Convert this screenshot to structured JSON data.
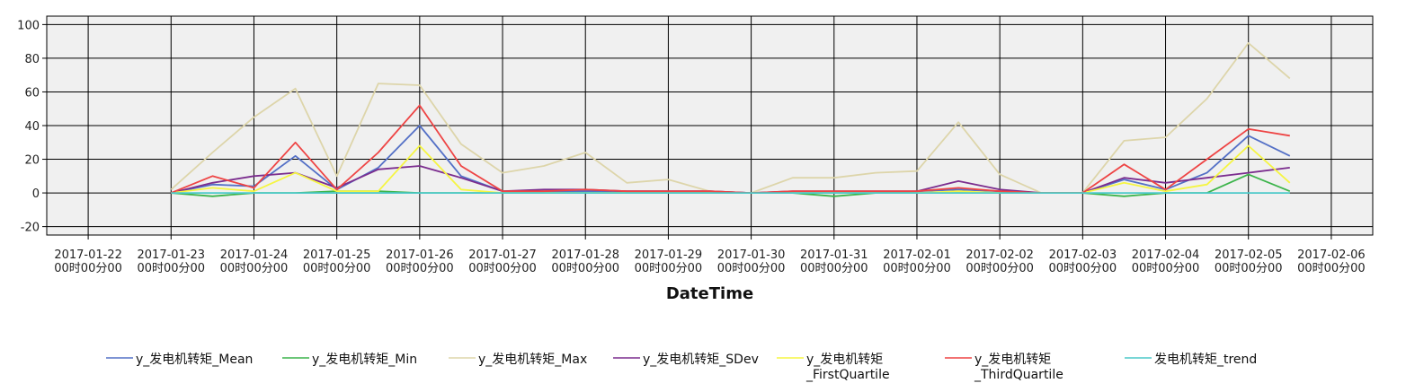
{
  "chart_data": {
    "type": "line",
    "title": "",
    "xlabel": "DateTime",
    "ylabel": "",
    "ylim": [
      -25,
      105
    ],
    "yticks": [
      -20,
      0,
      20,
      40,
      60,
      80,
      100
    ],
    "xlim": [
      "2017-01-21 12:00",
      "2017-02-06 12:00"
    ],
    "grid": true,
    "legend": "bottom",
    "plot_background": "#f0f0f0",
    "x_ticks": [
      {
        "line1": "2017-01-22",
        "line2": "00时00分00",
        "x": "2017-01-22 00:00"
      },
      {
        "line1": "2017-01-23",
        "line2": "00时00分00",
        "x": "2017-01-23 00:00"
      },
      {
        "line1": "2017-01-24",
        "line2": "00时00分00",
        "x": "2017-01-24 00:00"
      },
      {
        "line1": "2017-01-25",
        "line2": "00时00分00",
        "x": "2017-01-25 00:00"
      },
      {
        "line1": "2017-01-26",
        "line2": "00时00分00",
        "x": "2017-01-26 00:00"
      },
      {
        "line1": "2017-01-27",
        "line2": "00时00分00",
        "x": "2017-01-27 00:00"
      },
      {
        "line1": "2017-01-28",
        "line2": "00时00分00",
        "x": "2017-01-28 00:00"
      },
      {
        "line1": "2017-01-29",
        "line2": "00时00分00",
        "x": "2017-01-29 00:00"
      },
      {
        "line1": "2017-01-30",
        "line2": "00时00分00",
        "x": "2017-01-30 00:00"
      },
      {
        "line1": "2017-01-31",
        "line2": "00时00分00",
        "x": "2017-01-31 00:00"
      },
      {
        "line1": "2017-02-01",
        "line2": "00时00分00",
        "x": "2017-02-01 00:00"
      },
      {
        "line1": "2017-02-02",
        "line2": "00时00分00",
        "x": "2017-02-02 00:00"
      },
      {
        "line1": "2017-02-03",
        "line2": "00时00分00",
        "x": "2017-02-03 00:00"
      },
      {
        "line1": "2017-02-04",
        "line2": "00时00分00",
        "x": "2017-02-04 00:00"
      },
      {
        "line1": "2017-02-05",
        "line2": "00时00分00",
        "x": "2017-02-05 00:00"
      },
      {
        "line1": "2017-02-06",
        "line2": "00时00分00",
        "x": "2017-02-06 00:00"
      }
    ],
    "x": [
      "2017-01-23 00:00",
      "2017-01-23 12:00",
      "2017-01-24 00:00",
      "2017-01-24 12:00",
      "2017-01-25 00:00",
      "2017-01-25 12:00",
      "2017-01-26 00:00",
      "2017-01-26 12:00",
      "2017-01-27 00:00",
      "2017-01-27 12:00",
      "2017-01-28 00:00",
      "2017-01-28 12:00",
      "2017-01-29 00:00",
      "2017-01-29 12:00",
      "2017-01-30 00:00",
      "2017-01-30 12:00",
      "2017-01-31 00:00",
      "2017-01-31 12:00",
      "2017-02-01 00:00",
      "2017-02-01 12:00",
      "2017-02-02 00:00",
      "2017-02-02 12:00",
      "2017-02-03 00:00",
      "2017-02-03 12:00",
      "2017-02-04 00:00",
      "2017-02-04 12:00",
      "2017-02-05 00:00",
      "2017-02-05 12:00"
    ],
    "series": [
      {
        "name": "y_发电机转矩_Mean",
        "legend_lines": [
          "y_发电机转矩_Mean"
        ],
        "color": "#5470c6",
        "values": [
          0,
          5,
          4,
          22,
          2,
          15,
          40,
          10,
          1,
          1,
          1,
          1,
          1,
          1,
          0,
          0,
          0,
          0,
          1,
          2,
          1,
          0,
          0,
          8,
          2,
          12,
          34,
          22
        ]
      },
      {
        "name": "y_发电机转矩_Min",
        "legend_lines": [
          "y_发电机转矩_Min"
        ],
        "color": "#3cb44b",
        "values": [
          0,
          -2,
          0,
          0,
          1,
          1,
          0,
          0,
          0,
          0,
          0,
          0,
          0,
          0,
          0,
          0,
          -2,
          0,
          0,
          0,
          0,
          0,
          0,
          -2,
          0,
          0,
          11,
          1
        ]
      },
      {
        "name": "y_发电机转矩_Max",
        "legend_lines": [
          "y_发电机转矩_Max"
        ],
        "color": "#ddd5aa",
        "values": [
          2,
          24,
          45,
          62,
          10,
          65,
          64,
          29,
          12,
          16,
          24,
          6,
          8,
          1,
          0,
          9,
          9,
          12,
          13,
          42,
          11,
          0,
          0,
          31,
          33,
          56,
          89,
          68
        ]
      },
      {
        "name": "y_发电机转矩_SDev",
        "legend_lines": [
          "y_发电机转矩_SDev"
        ],
        "color": "#7b2d8e",
        "values": [
          0,
          6,
          10,
          12,
          3,
          14,
          16,
          9,
          1,
          2,
          2,
          1,
          1,
          1,
          0,
          1,
          1,
          1,
          1,
          7,
          2,
          0,
          0,
          9,
          6,
          9,
          12,
          15
        ]
      },
      {
        "name": "y_发电机转矩_FirstQuartile",
        "legend_lines": [
          "y_发电机转矩",
          "_FirstQuartile"
        ],
        "color": "#f5f542",
        "values": [
          0,
          3,
          1,
          12,
          1,
          1,
          28,
          2,
          0,
          0,
          0,
          0,
          0,
          0,
          0,
          0,
          0,
          0,
          0,
          1,
          0,
          0,
          0,
          6,
          1,
          5,
          28,
          6
        ]
      },
      {
        "name": "y_发电机转矩_ThirdQuartile",
        "legend_lines": [
          "y_发电机转矩",
          "_ThirdQuartile"
        ],
        "color": "#ee4444",
        "values": [
          0,
          10,
          3,
          30,
          2,
          24,
          52,
          16,
          1,
          1,
          2,
          1,
          1,
          1,
          0,
          1,
          1,
          1,
          1,
          3,
          1,
          0,
          0,
          17,
          2,
          20,
          38,
          34
        ]
      },
      {
        "name": "发电机转矩_trend",
        "legend_lines": [
          "发电机转矩_trend"
        ],
        "color": "#4cc9c9",
        "values": [
          0,
          0,
          0,
          0,
          0,
          0,
          0,
          0,
          0,
          0,
          0,
          0,
          0,
          0,
          0,
          0,
          0,
          0,
          0,
          0,
          0,
          0,
          0,
          0,
          0,
          0,
          0,
          0
        ]
      }
    ]
  }
}
